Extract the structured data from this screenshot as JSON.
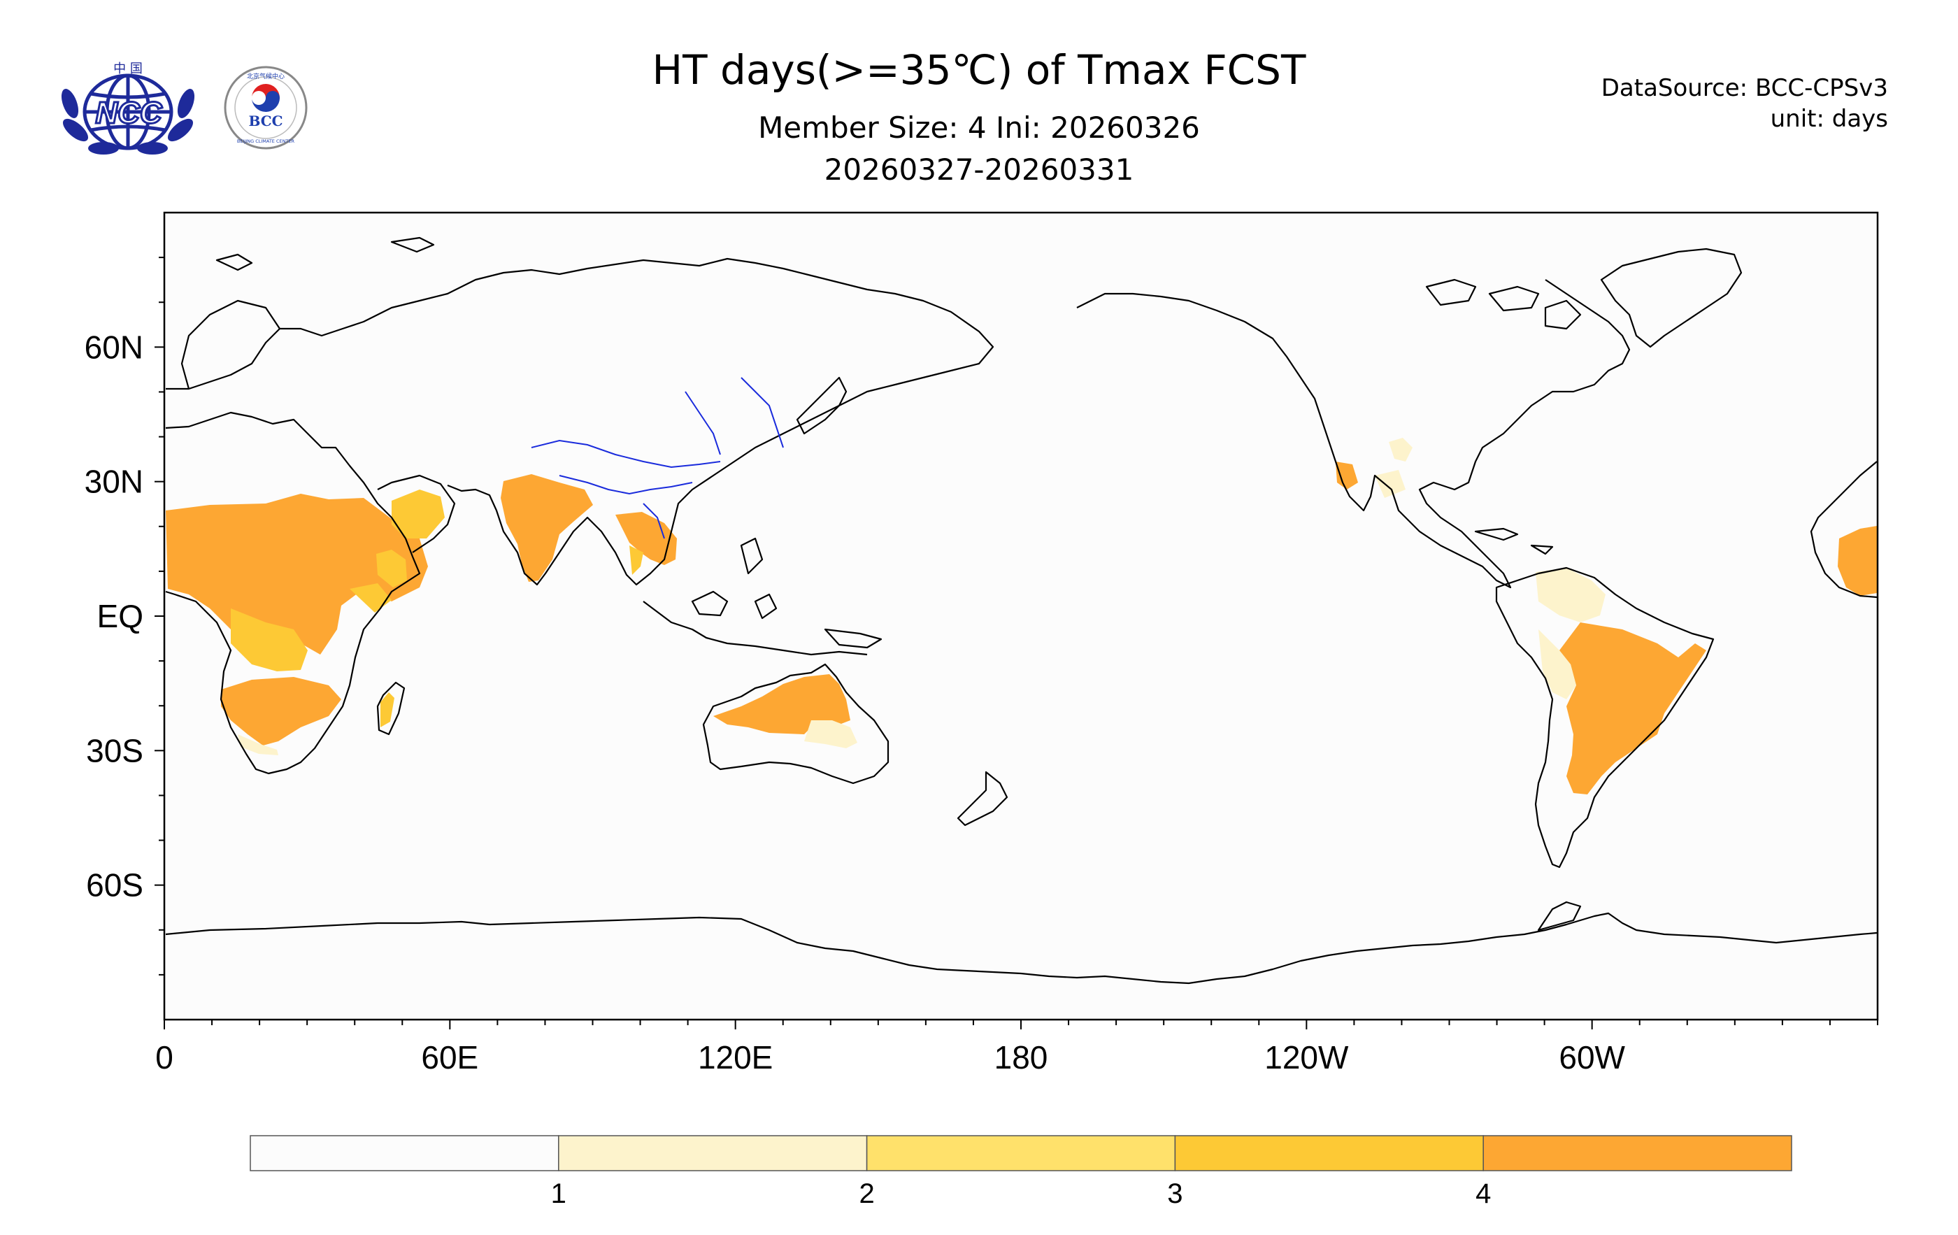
{
  "header": {
    "title": "HT days(>=35℃) of Tmax FCST",
    "subtitle": "Member Size: 4  Ini: 20260326",
    "period": "20260327-20260331",
    "data_source": "DataSource: BCC-CPSv3",
    "unit": "unit: days"
  },
  "logos": {
    "ncc": {
      "top_text": "中 国",
      "text": "NCC"
    },
    "bcc": {
      "text": "BCC",
      "ring_text": "BEIJING CLIMATE CENTER",
      "top_text": "北京气候中心"
    }
  },
  "map": {
    "projection": "cylindrical equidistant",
    "lon_range": [
      0,
      360
    ],
    "lat_range": [
      -90,
      90
    ],
    "lon_ticks": [
      {
        "lon": 0,
        "label": "0"
      },
      {
        "lon": 60,
        "label": "60E"
      },
      {
        "lon": 120,
        "label": "120E"
      },
      {
        "lon": 180,
        "label": "180"
      },
      {
        "lon": 240,
        "label": "120W"
      },
      {
        "lon": 300,
        "label": "60W"
      }
    ],
    "lat_ticks": [
      {
        "lat": 60,
        "label": "60N"
      },
      {
        "lat": 30,
        "label": "30N"
      },
      {
        "lat": 0,
        "label": "EQ"
      },
      {
        "lat": -30,
        "label": "30S"
      },
      {
        "lat": -60,
        "label": "60S"
      }
    ]
  },
  "legend": {
    "colors": [
      "#fcfcfc",
      "#fdf3cc",
      "#ffe16b",
      "#fdc935",
      "#fda733"
    ],
    "labels": [
      "1",
      "2",
      "3",
      "4"
    ]
  },
  "colors": {
    "coastline": "#000000",
    "rivers": "#1a2bdc",
    "background": "#ffffff"
  }
}
